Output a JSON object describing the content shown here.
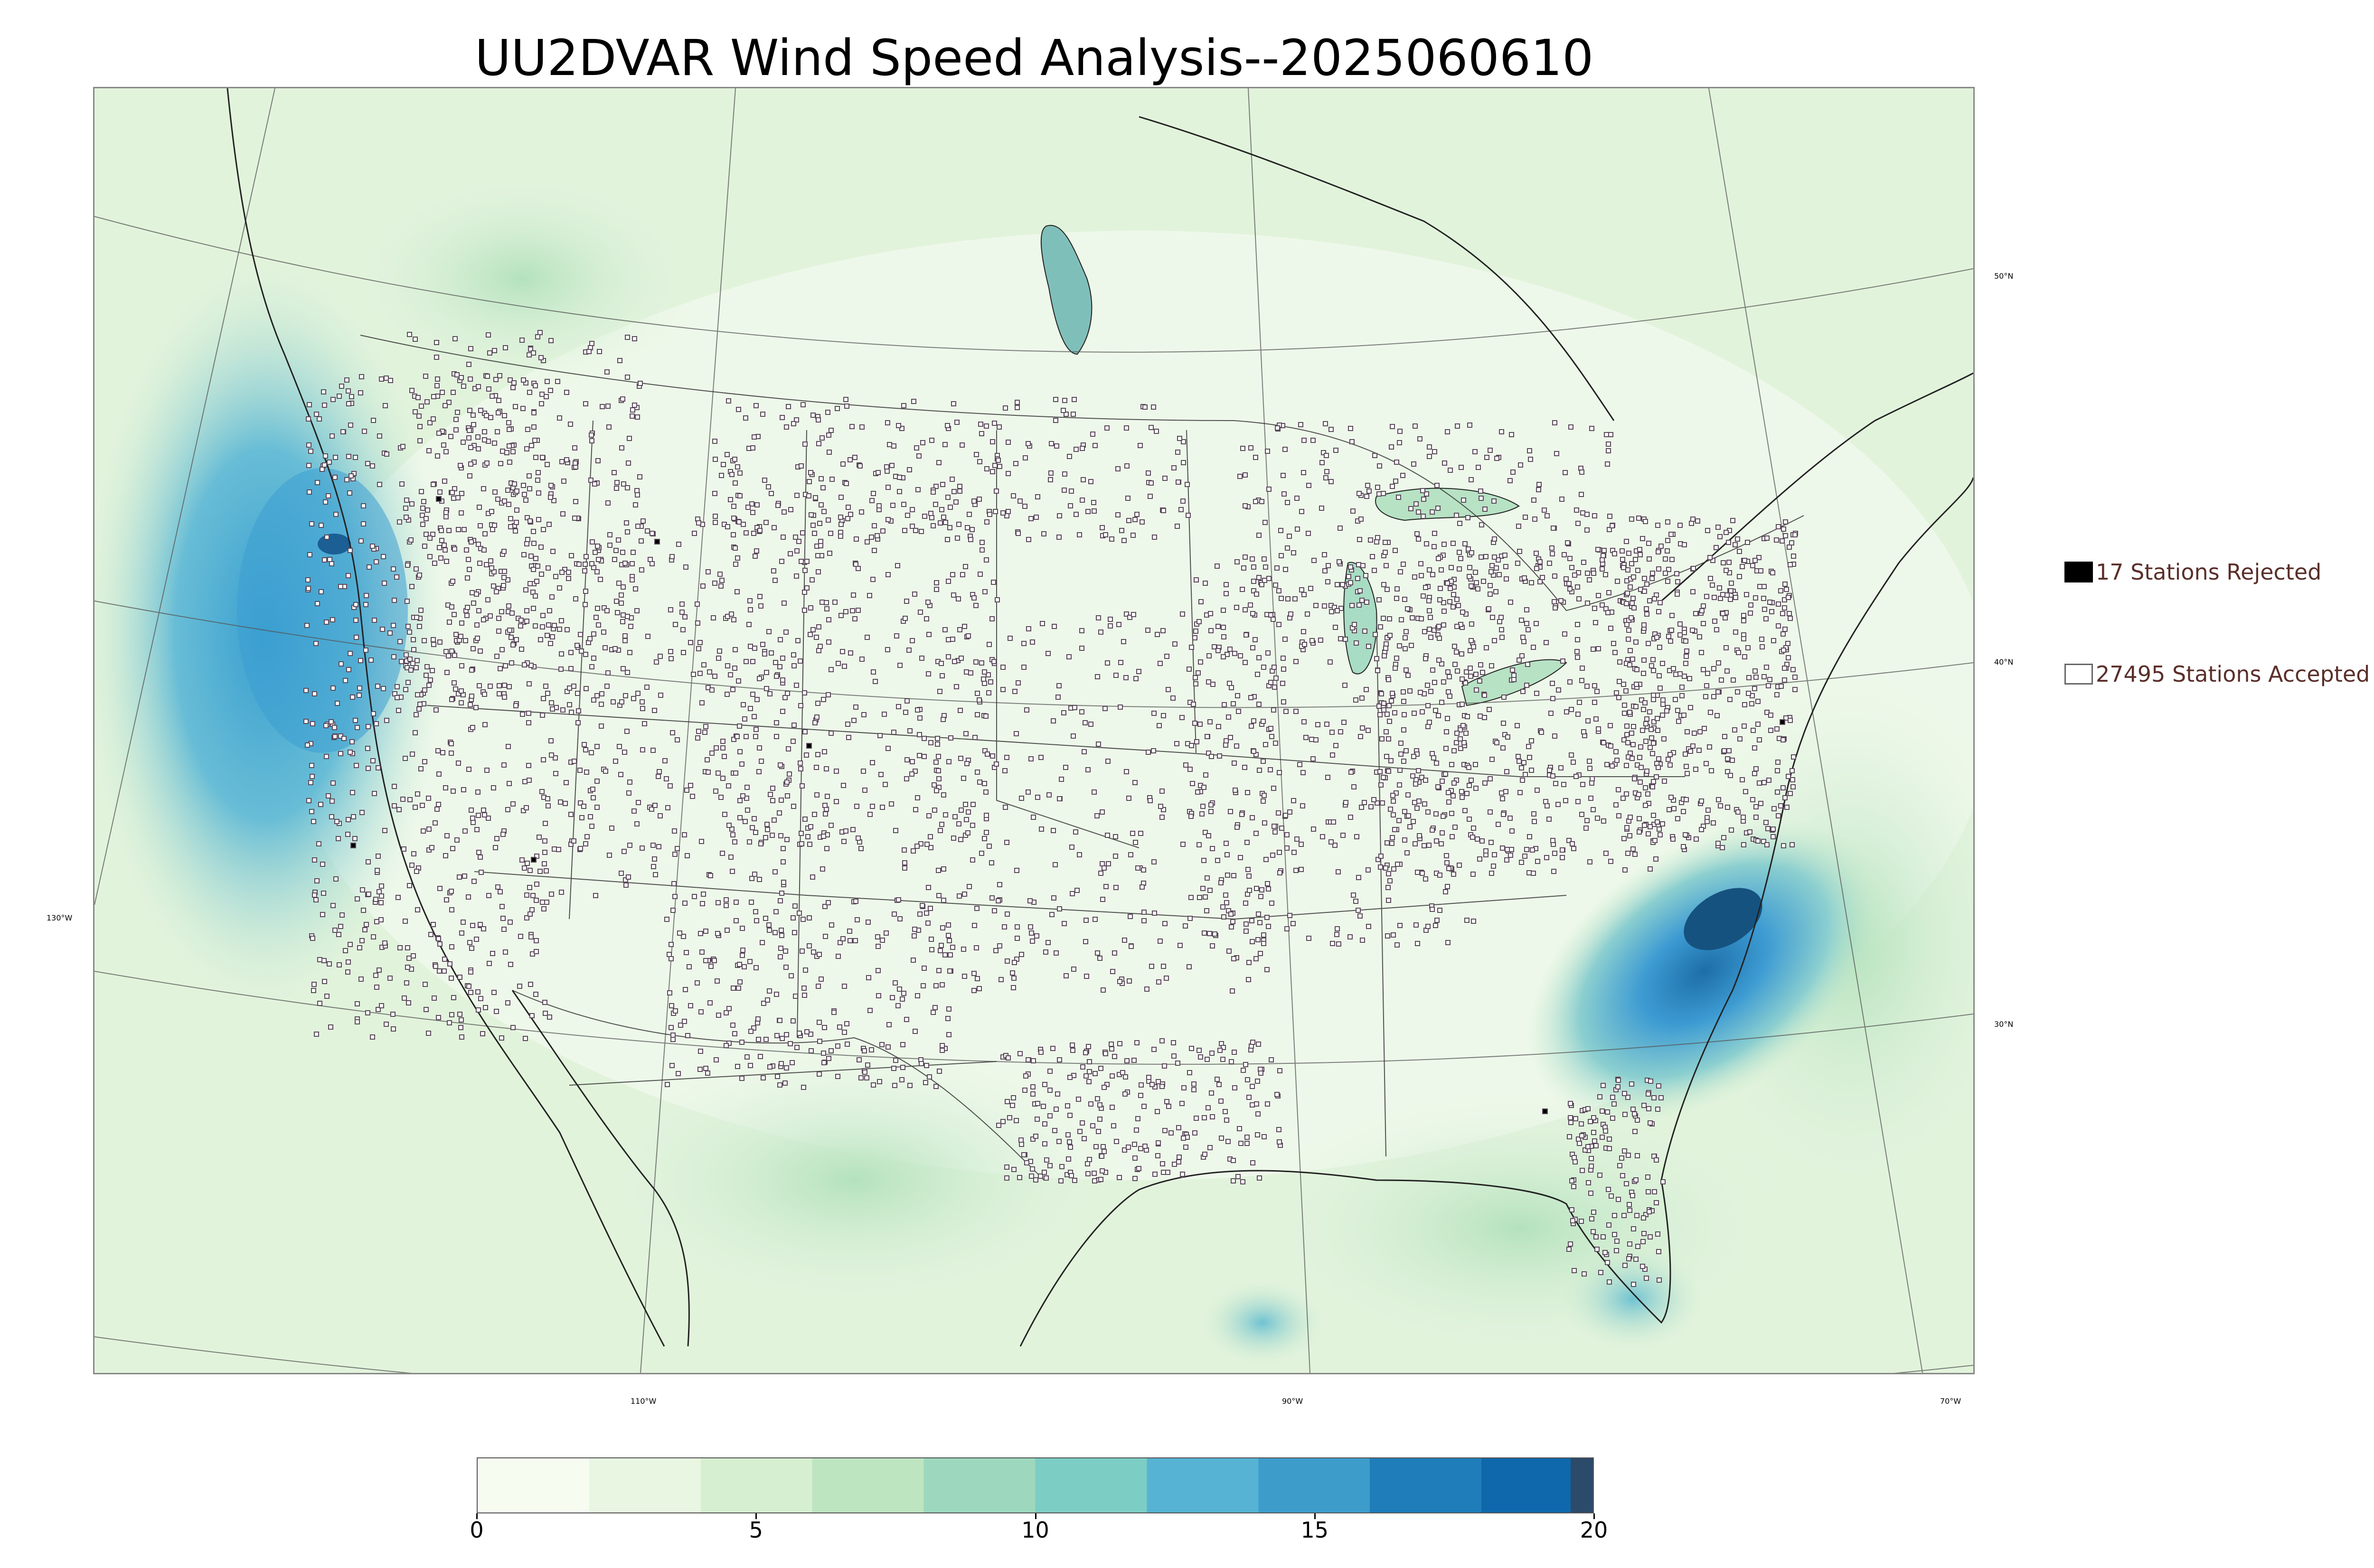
{
  "title": "UU2DVAR Wind Speed Analysis--2025060610",
  "map": {
    "latitude_labels": [
      "50°N",
      "40°N",
      "30°N"
    ],
    "longitude_labels": [
      "130°W",
      "110°W",
      "90°W",
      "70°W"
    ],
    "colors": {
      "low": "#f7fcf0",
      "mid": "#a8ddb5",
      "high": "#2b8cbe",
      "max": "#08589e",
      "border_lines": "#222222",
      "graticule": "#555555",
      "lakes": "#7fbfba"
    }
  },
  "legend": {
    "rejected_label": "17 Stations Rejected",
    "accepted_label": "27495 Stations Accepted",
    "rejected_color": "#000000",
    "accepted_color": "#ffffff"
  },
  "colorbar": {
    "tick_labels": [
      "0",
      "5",
      "10",
      "15",
      "20"
    ],
    "min": 0,
    "max": 20,
    "stops": [
      {
        "value": 0,
        "color": "#f7fcf0"
      },
      {
        "value": 2,
        "color": "#e8f6e2"
      },
      {
        "value": 4,
        "color": "#d6efd0"
      },
      {
        "value": 6,
        "color": "#bde5bf"
      },
      {
        "value": 8,
        "color": "#9dd8be"
      },
      {
        "value": 10,
        "color": "#7ccdc4"
      },
      {
        "value": 12,
        "color": "#56b3d3"
      },
      {
        "value": 14,
        "color": "#3e9ccb"
      },
      {
        "value": 16,
        "color": "#1f7dba"
      },
      {
        "value": 18,
        "color": "#0f68ab"
      },
      {
        "value": 19.6,
        "color": "#2c4a6a"
      },
      {
        "value": 20,
        "color": "#324a66"
      }
    ]
  }
}
